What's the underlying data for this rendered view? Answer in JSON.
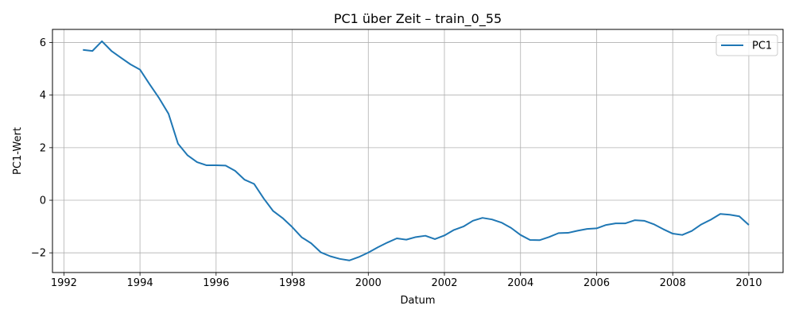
{
  "chart_data": {
    "type": "line",
    "title": "PC1 über Zeit – train_0_55",
    "xlabel": "Datum",
    "ylabel": "PC1-Wert",
    "xlim": [
      1991.7,
      2010.9
    ],
    "ylim": [
      -2.75,
      6.5
    ],
    "x_ticks": [
      1992,
      1994,
      1996,
      1998,
      2000,
      2002,
      2004,
      2006,
      2008,
      2010
    ],
    "y_ticks": [
      -2,
      0,
      2,
      4,
      6
    ],
    "grid": true,
    "legend_position": "top-right",
    "series": [
      {
        "name": "PC1",
        "color": "#1f77b4",
        "x": [
          1992.5,
          1992.75,
          1993.0,
          1993.25,
          1993.5,
          1993.75,
          1994.0,
          1994.25,
          1994.5,
          1994.75,
          1995.0,
          1995.25,
          1995.5,
          1995.75,
          1996.0,
          1996.25,
          1996.5,
          1996.75,
          1997.0,
          1997.25,
          1997.5,
          1997.75,
          1998.0,
          1998.25,
          1998.5,
          1998.75,
          1999.0,
          1999.25,
          1999.5,
          1999.75,
          2000.0,
          2000.25,
          2000.5,
          2000.75,
          2001.0,
          2001.25,
          2001.5,
          2001.75,
          2002.0,
          2002.25,
          2002.5,
          2002.75,
          2003.0,
          2003.25,
          2003.5,
          2003.75,
          2004.0,
          2004.25,
          2004.5,
          2004.75,
          2005.0,
          2005.25,
          2005.5,
          2005.75,
          2006.0,
          2006.25,
          2006.5,
          2006.75,
          2007.0,
          2007.25,
          2007.5,
          2007.75,
          2008.0,
          2008.25,
          2008.5,
          2008.75,
          2009.0,
          2009.25,
          2009.5,
          2009.75,
          2010.0
        ],
        "y": [
          5.72,
          5.68,
          6.05,
          5.68,
          5.42,
          5.17,
          4.97,
          4.42,
          3.89,
          3.29,
          2.15,
          1.71,
          1.45,
          1.33,
          1.33,
          1.32,
          1.12,
          0.78,
          0.62,
          0.07,
          -0.41,
          -0.68,
          -1.02,
          -1.41,
          -1.64,
          -1.98,
          -2.13,
          -2.23,
          -2.29,
          -2.16,
          -1.99,
          -1.79,
          -1.61,
          -1.45,
          -1.5,
          -1.4,
          -1.35,
          -1.48,
          -1.34,
          -1.13,
          -1.0,
          -0.78,
          -0.67,
          -0.73,
          -0.85,
          -1.05,
          -1.32,
          -1.51,
          -1.52,
          -1.4,
          -1.25,
          -1.24,
          -1.16,
          -1.09,
          -1.07,
          -0.94,
          -0.88,
          -0.88,
          -0.76,
          -0.78,
          -0.91,
          -1.1,
          -1.27,
          -1.32,
          -1.17,
          -0.92,
          -0.74,
          -0.52,
          -0.55,
          -0.61,
          -0.94
        ]
      }
    ]
  }
}
